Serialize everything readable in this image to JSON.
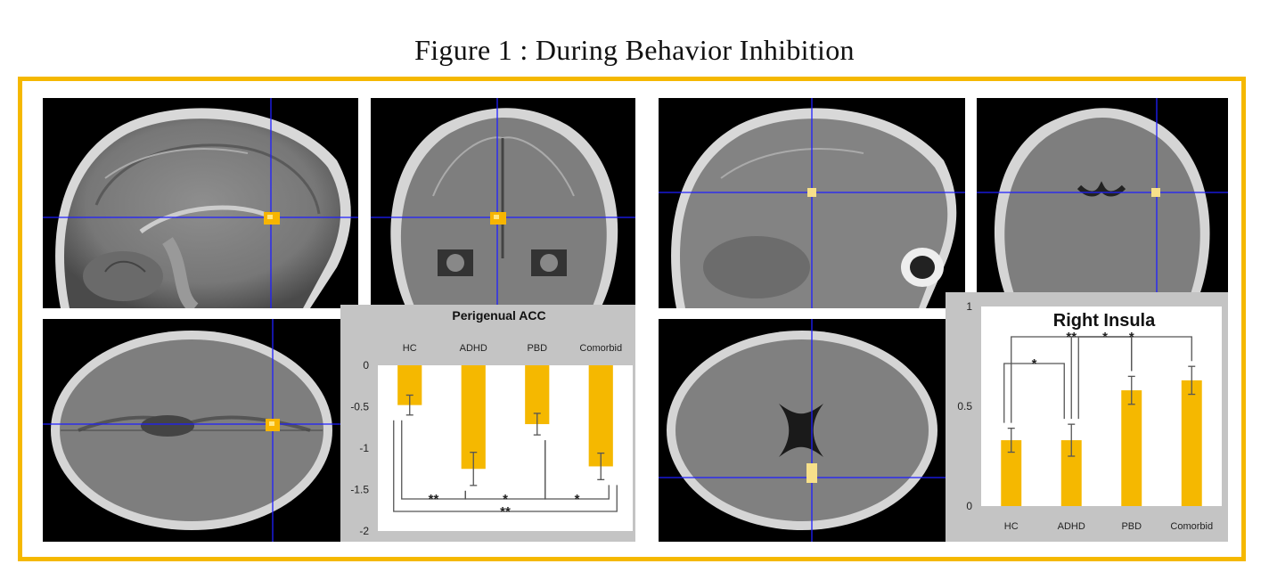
{
  "figure": {
    "title": "Figure 1 : During Behavior Inhibition"
  },
  "colors": {
    "frame": "#f5b800",
    "bar": "#f5b800",
    "crosshair": "#1e1eff",
    "activation": "#f7b500"
  },
  "icons": [
    "brain-sagittal-image",
    "brain-coronal-image",
    "brain-axial-image"
  ],
  "chart_data": [
    {
      "type": "bar",
      "title": "Perigenual ACC",
      "categories": [
        "HC",
        "ADHD",
        "PBD",
        "Comorbid"
      ],
      "values": [
        -0.48,
        -1.25,
        -0.71,
        -1.22
      ],
      "errors": [
        0.12,
        0.2,
        0.13,
        0.16
      ],
      "ylim": [
        -2,
        0
      ],
      "yticks": [
        "0",
        "-0.5",
        "-1",
        "-1.5",
        "-2"
      ],
      "significance": [
        {
          "from": "HC",
          "to": "ADHD",
          "label": "**"
        },
        {
          "from": "ADHD",
          "to": "PBD",
          "label": "*"
        },
        {
          "from": "PBD",
          "to": "Comorbid",
          "label": "*"
        },
        {
          "from": "HC",
          "to": "Comorbid",
          "label": "**"
        }
      ]
    },
    {
      "type": "bar",
      "title": "Right Insula",
      "categories": [
        "HC",
        "ADHD",
        "PBD",
        "Comorbid"
      ],
      "values": [
        0.33,
        0.33,
        0.58,
        0.63
      ],
      "errors": [
        0.06,
        0.08,
        0.07,
        0.07
      ],
      "ylim": [
        0,
        1
      ],
      "yticks": [
        "0",
        "0.5",
        "1"
      ],
      "significance": [
        {
          "from": "HC",
          "to": "ADHD",
          "label": "*"
        },
        {
          "from": "ADHD",
          "to": "PBD",
          "label": "*"
        },
        {
          "from": "HC",
          "to": "PBD",
          "label": "**"
        },
        {
          "from": "ADHD",
          "to": "Comorbid",
          "label": "*"
        }
      ]
    }
  ]
}
